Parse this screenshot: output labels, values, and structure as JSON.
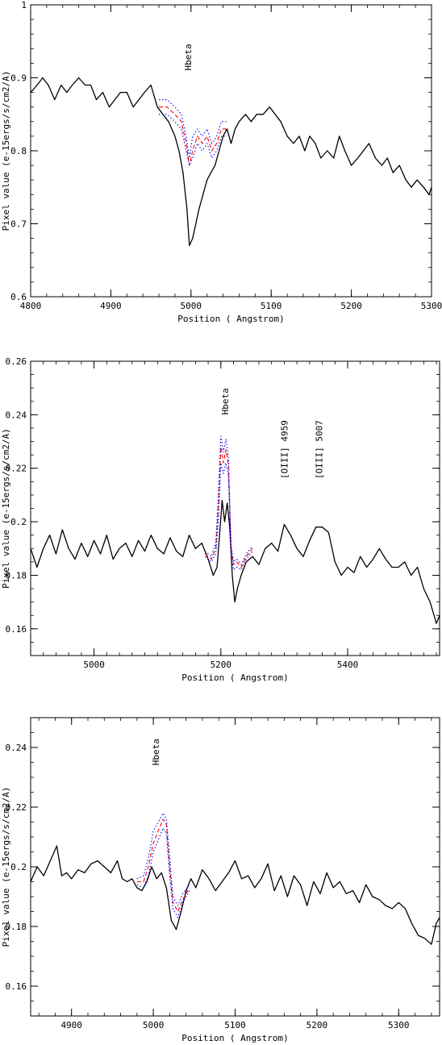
{
  "chart_data": [
    {
      "type": "line",
      "xlabel": "Position ( Angstrom)",
      "ylabel": "Pixel value (e-15ergs/s/cm2/A)",
      "xlim": [
        4800,
        5300
      ],
      "ylim": [
        0.6,
        1.0
      ],
      "xticks": [
        "4800",
        "4900",
        "5000",
        "5100",
        "5200",
        "5300"
      ],
      "yticks": [
        "0.6",
        "0.7",
        "0.8",
        "0.9",
        "1"
      ],
      "annotations": [
        {
          "text": "Hbeta",
          "x": 5000,
          "y": 0.91
        }
      ],
      "series": [
        {
          "style": "solid",
          "color": "#000000",
          "x": [
            4800,
            4808,
            4815,
            4822,
            4830,
            4838,
            4845,
            4852,
            4860,
            4868,
            4875,
            4882,
            4890,
            4898,
            4905,
            4912,
            4920,
            4928,
            4935,
            4942,
            4950,
            4958,
            4965,
            4972,
            4980,
            4985,
            4990,
            4995,
            4998,
            5002,
            5006,
            5010,
            5015,
            5020,
            5025,
            5030,
            5035,
            5040,
            5045,
            5050,
            5055,
            5060,
            5068,
            5075,
            5082,
            5090,
            5098,
            5105,
            5112,
            5120,
            5128,
            5135,
            5142,
            5148,
            5155,
            5162,
            5170,
            5178,
            5185,
            5192,
            5200,
            5208,
            5215,
            5222,
            5230,
            5238,
            5245,
            5252,
            5260,
            5268,
            5275,
            5282,
            5290,
            5297,
            5300
          ],
          "y": [
            0.88,
            0.89,
            0.9,
            0.89,
            0.87,
            0.89,
            0.88,
            0.89,
            0.9,
            0.89,
            0.89,
            0.87,
            0.88,
            0.86,
            0.87,
            0.88,
            0.88,
            0.86,
            0.87,
            0.88,
            0.89,
            0.86,
            0.85,
            0.84,
            0.82,
            0.8,
            0.77,
            0.72,
            0.67,
            0.68,
            0.7,
            0.72,
            0.74,
            0.76,
            0.77,
            0.78,
            0.8,
            0.82,
            0.83,
            0.81,
            0.83,
            0.84,
            0.85,
            0.84,
            0.85,
            0.85,
            0.86,
            0.85,
            0.84,
            0.82,
            0.81,
            0.82,
            0.8,
            0.82,
            0.81,
            0.79,
            0.8,
            0.79,
            0.82,
            0.8,
            0.78,
            0.79,
            0.8,
            0.81,
            0.79,
            0.78,
            0.79,
            0.77,
            0.78,
            0.76,
            0.75,
            0.76,
            0.75,
            0.74,
            0.75
          ]
        },
        {
          "style": "dashed",
          "color": "#ff0000",
          "x": [
            4960,
            4970,
            4980,
            4988,
            4994,
            4998,
            5002,
            5008,
            5014,
            5020,
            5026,
            5032,
            5038,
            5044
          ],
          "y": [
            0.86,
            0.86,
            0.85,
            0.84,
            0.81,
            0.78,
            0.8,
            0.82,
            0.81,
            0.82,
            0.8,
            0.81,
            0.83,
            0.83
          ]
        },
        {
          "style": "dotted",
          "color": "#0000ff",
          "x": [
            4960,
            4970,
            4980,
            4988,
            4994,
            4998,
            5002,
            5008,
            5014,
            5020,
            5026,
            5032,
            5038,
            5044
          ],
          "y": [
            0.87,
            0.87,
            0.86,
            0.85,
            0.82,
            0.79,
            0.82,
            0.83,
            0.82,
            0.83,
            0.81,
            0.82,
            0.84,
            0.84
          ]
        },
        {
          "style": "dotted",
          "color": "#0000ff",
          "x": [
            4960,
            4970,
            4980,
            4988,
            4994,
            4998,
            5002,
            5008,
            5014,
            5020,
            5026,
            5032,
            5038,
            5044
          ],
          "y": [
            0.85,
            0.85,
            0.84,
            0.83,
            0.8,
            0.78,
            0.79,
            0.81,
            0.8,
            0.81,
            0.79,
            0.8,
            0.82,
            0.82
          ]
        }
      ]
    },
    {
      "type": "line",
      "xlabel": "Position ( Angstrom)",
      "ylabel": "Pixel value (e-15ergs/s/cm2/A)",
      "xlim": [
        4900,
        5545
      ],
      "ylim": [
        0.15,
        0.26
      ],
      "xticks": [
        "5000",
        "5200",
        "5400"
      ],
      "yticks": [
        "0.16",
        "0.18",
        "0.2",
        "0.22",
        "0.24",
        "0.26"
      ],
      "annotations": [
        {
          "text": "Hbeta",
          "x": 5212,
          "y": 0.24
        },
        {
          "text": "[OIII] 4959",
          "x": 5305,
          "y": 0.216
        },
        {
          "text": "[OIII] 5007",
          "x": 5360,
          "y": 0.216
        }
      ],
      "series": [
        {
          "style": "solid",
          "color": "#000000",
          "x": [
            4900,
            4910,
            4920,
            4930,
            4940,
            4950,
            4960,
            4970,
            4980,
            4990,
            5000,
            5010,
            5020,
            5030,
            5040,
            5050,
            5060,
            5070,
            5080,
            5090,
            5100,
            5110,
            5120,
            5130,
            5140,
            5150,
            5160,
            5170,
            5180,
            5188,
            5194,
            5198,
            5202,
            5206,
            5210,
            5214,
            5218,
            5222,
            5226,
            5232,
            5240,
            5250,
            5260,
            5270,
            5280,
            5290,
            5300,
            5310,
            5320,
            5330,
            5340,
            5350,
            5360,
            5370,
            5380,
            5390,
            5400,
            5410,
            5420,
            5430,
            5440,
            5450,
            5460,
            5470,
            5480,
            5490,
            5500,
            5510,
            5520,
            5530,
            5540,
            5545
          ],
          "y": [
            0.19,
            0.183,
            0.19,
            0.195,
            0.188,
            0.197,
            0.19,
            0.186,
            0.192,
            0.187,
            0.193,
            0.188,
            0.195,
            0.186,
            0.19,
            0.192,
            0.187,
            0.193,
            0.189,
            0.195,
            0.19,
            0.188,
            0.194,
            0.189,
            0.187,
            0.195,
            0.19,
            0.192,
            0.186,
            0.18,
            0.183,
            0.195,
            0.208,
            0.2,
            0.207,
            0.198,
            0.18,
            0.17,
            0.175,
            0.18,
            0.185,
            0.187,
            0.184,
            0.19,
            0.192,
            0.189,
            0.199,
            0.195,
            0.19,
            0.187,
            0.193,
            0.198,
            0.198,
            0.196,
            0.185,
            0.18,
            0.183,
            0.181,
            0.187,
            0.183,
            0.186,
            0.19,
            0.186,
            0.183,
            0.183,
            0.185,
            0.18,
            0.183,
            0.175,
            0.17,
            0.162,
            0.165
          ]
        },
        {
          "style": "dashed",
          "color": "#ff0000",
          "x": [
            5175,
            5185,
            5192,
            5196,
            5200,
            5204,
            5208,
            5212,
            5216,
            5220,
            5225,
            5232,
            5240,
            5250
          ],
          "y": [
            0.188,
            0.186,
            0.19,
            0.205,
            0.228,
            0.222,
            0.227,
            0.221,
            0.19,
            0.184,
            0.185,
            0.183,
            0.187,
            0.19
          ]
        },
        {
          "style": "dotted",
          "color": "#0000ff",
          "x": [
            5175,
            5185,
            5192,
            5196,
            5200,
            5204,
            5208,
            5212,
            5216,
            5220,
            5225,
            5232,
            5240,
            5250
          ],
          "y": [
            0.189,
            0.187,
            0.192,
            0.21,
            0.232,
            0.226,
            0.231,
            0.224,
            0.192,
            0.185,
            0.186,
            0.184,
            0.188,
            0.191
          ]
        },
        {
          "style": "dotted",
          "color": "#0000ff",
          "x": [
            5175,
            5185,
            5192,
            5196,
            5200,
            5204,
            5208,
            5212,
            5216,
            5220,
            5225,
            5232,
            5240,
            5250
          ],
          "y": [
            0.187,
            0.185,
            0.188,
            0.2,
            0.222,
            0.218,
            0.222,
            0.217,
            0.188,
            0.182,
            0.183,
            0.182,
            0.186,
            0.189
          ]
        }
      ]
    },
    {
      "type": "line",
      "xlabel": "Position ( Angstrom)",
      "ylabel": "Pixel value (e-15ergs/s/cm2/A)",
      "xlim": [
        4850,
        5350
      ],
      "ylim": [
        0.15,
        0.25
      ],
      "xticks": [
        "4900",
        "5000",
        "5100",
        "5200",
        "5300"
      ],
      "yticks": [
        "0.16",
        "0.18",
        "0.2",
        "0.22",
        "0.24"
      ],
      "annotations": [
        {
          "text": "Hbeta",
          "x": 5007,
          "y": 0.234
        }
      ],
      "series": [
        {
          "style": "solid",
          "color": "#000000",
          "x": [
            4850,
            4858,
            4866,
            4874,
            4882,
            4888,
            4894,
            4900,
            4908,
            4916,
            4924,
            4932,
            4940,
            4948,
            4956,
            4962,
            4968,
            4974,
            4980,
            4986,
            4992,
            4998,
            5004,
            5010,
            5016,
            5022,
            5028,
            5034,
            5040,
            5046,
            5052,
            5060,
            5068,
            5076,
            5084,
            5092,
            5100,
            5108,
            5116,
            5124,
            5132,
            5140,
            5148,
            5156,
            5164,
            5172,
            5180,
            5188,
            5196,
            5204,
            5212,
            5220,
            5228,
            5236,
            5244,
            5252,
            5260,
            5268,
            5276,
            5284,
            5292,
            5300,
            5308,
            5316,
            5324,
            5332,
            5340,
            5346,
            5350
          ],
          "y": [
            0.195,
            0.2,
            0.197,
            0.202,
            0.207,
            0.197,
            0.198,
            0.196,
            0.199,
            0.198,
            0.201,
            0.202,
            0.2,
            0.198,
            0.202,
            0.196,
            0.195,
            0.196,
            0.193,
            0.192,
            0.195,
            0.2,
            0.196,
            0.198,
            0.193,
            0.182,
            0.179,
            0.185,
            0.192,
            0.196,
            0.193,
            0.199,
            0.196,
            0.192,
            0.195,
            0.198,
            0.202,
            0.196,
            0.197,
            0.193,
            0.196,
            0.201,
            0.192,
            0.197,
            0.19,
            0.197,
            0.194,
            0.187,
            0.195,
            0.191,
            0.198,
            0.193,
            0.195,
            0.191,
            0.192,
            0.188,
            0.194,
            0.19,
            0.189,
            0.187,
            0.186,
            0.188,
            0.186,
            0.181,
            0.177,
            0.176,
            0.174,
            0.181,
            0.183
          ]
        },
        {
          "style": "dashed",
          "color": "#ff0000",
          "x": [
            4980,
            4988,
            4994,
            5000,
            5006,
            5012,
            5016,
            5020,
            5024,
            5030,
            5036,
            5044
          ],
          "y": [
            0.195,
            0.195,
            0.2,
            0.208,
            0.212,
            0.216,
            0.214,
            0.2,
            0.188,
            0.185,
            0.189,
            0.193
          ]
        },
        {
          "style": "dotted",
          "color": "#0000ff",
          "x": [
            4980,
            4988,
            4994,
            5000,
            5006,
            5012,
            5016,
            5020,
            5024,
            5030,
            5036,
            5044
          ],
          "y": [
            0.196,
            0.197,
            0.203,
            0.212,
            0.215,
            0.218,
            0.216,
            0.203,
            0.19,
            0.187,
            0.191,
            0.194
          ]
        },
        {
          "style": "dotted",
          "color": "#0000ff",
          "x": [
            4980,
            4988,
            4994,
            5000,
            5006,
            5012,
            5016,
            5020,
            5024,
            5030,
            5036,
            5044
          ],
          "y": [
            0.194,
            0.193,
            0.197,
            0.205,
            0.209,
            0.213,
            0.211,
            0.197,
            0.186,
            0.183,
            0.188,
            0.192
          ]
        }
      ]
    }
  ]
}
